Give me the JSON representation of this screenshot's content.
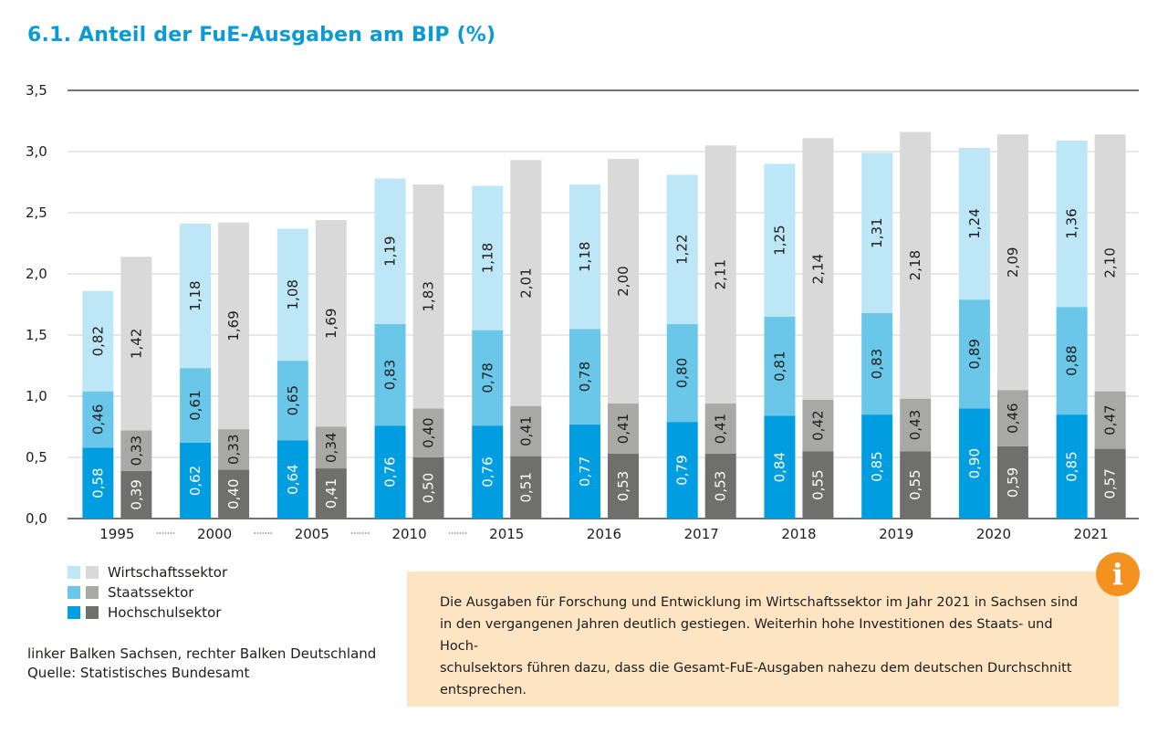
{
  "title": "6.1. Anteil der FuE-Ausgaben am BIP (%)",
  "chart_data": {
    "type": "bar",
    "stacked": true,
    "categories": [
      "1995",
      "2000",
      "2005",
      "2010",
      "2015",
      "2016",
      "2017",
      "2018",
      "2019",
      "2020",
      "2021"
    ],
    "ylim": [
      0,
      3.5
    ],
    "yticks": [
      "0,0",
      "0,5",
      "1,0",
      "1,5",
      "2,0",
      "2,5",
      "3,0",
      "3,5"
    ],
    "grid": true,
    "series_order": [
      "Hochschulsektor",
      "Staatssektor",
      "Wirtschaftssektor"
    ],
    "regions": {
      "Sachsen": {
        "Hochschulsektor": [
          0.58,
          0.62,
          0.64,
          0.76,
          0.76,
          0.77,
          0.79,
          0.84,
          0.85,
          0.9,
          0.85
        ],
        "Staatssektor": [
          0.46,
          0.61,
          0.65,
          0.83,
          0.78,
          0.78,
          0.8,
          0.81,
          0.83,
          0.89,
          0.88
        ],
        "Wirtschaftssektor": [
          0.82,
          1.18,
          1.08,
          1.19,
          1.18,
          1.18,
          1.22,
          1.25,
          1.31,
          1.24,
          1.36
        ]
      },
      "Deutschland": {
        "Hochschulsektor": [
          0.39,
          0.4,
          0.41,
          0.5,
          0.51,
          0.53,
          0.53,
          0.55,
          0.55,
          0.59,
          0.57
        ],
        "Staatssektor": [
          0.33,
          0.33,
          0.34,
          0.4,
          0.41,
          0.41,
          0.41,
          0.42,
          0.43,
          0.46,
          0.47
        ],
        "Wirtschaftssektor": [
          1.42,
          1.69,
          1.69,
          1.83,
          2.01,
          2.0,
          2.11,
          2.14,
          2.18,
          2.09,
          2.1
        ]
      }
    },
    "colors": {
      "Sachsen": {
        "Hochschulsektor": "#009ee0",
        "Staatssektor": "#6ac7ea",
        "Wirtschaftssektor": "#bde6f6"
      },
      "Deutschland": {
        "Hochschulsektor": "#6f6f6e",
        "Staatssektor": "#a8a8a7",
        "Wirtschaftssektor": "#d9d9d9"
      }
    },
    "label_colors": {
      "Hochschulsektor": "#ffffff",
      "Staatssektor": "#1d1d1b",
      "Wirtschaftssektor": "#1d1d1b"
    },
    "legend_placement": "bottom-left"
  },
  "legend": {
    "items": [
      {
        "label": "Wirtschaftssektor",
        "colors": [
          "#bde6f6",
          "#d9d9d9"
        ]
      },
      {
        "label": "Staatssektor",
        "colors": [
          "#6ac7ea",
          "#a8a8a7"
        ]
      },
      {
        "label": "Hochschulsektor",
        "colors": [
          "#009ee0",
          "#6f6f6e"
        ]
      }
    ]
  },
  "note": {
    "line1": "linker Balken Sachsen, rechter Balken Deutschland",
    "line2": "Quelle: Statistisches Bundesamt"
  },
  "info": {
    "icon": "info-icon",
    "icon_glyph": "i",
    "line1": "Die Ausgaben für Forschung und Entwicklung im Wirtschaftssektor im Jahr 2021 in Sachsen sind",
    "line2": "in den vergangenen Jahren deutlich gestiegen. Weiterhin hohe Investitionen des Staats- und Hoch-",
    "line3": "schulsektors führen dazu, dass die Gesamt-FuE-Ausgaben nahezu dem deutschen Durchschnitt",
    "line4": "entsprechen."
  }
}
